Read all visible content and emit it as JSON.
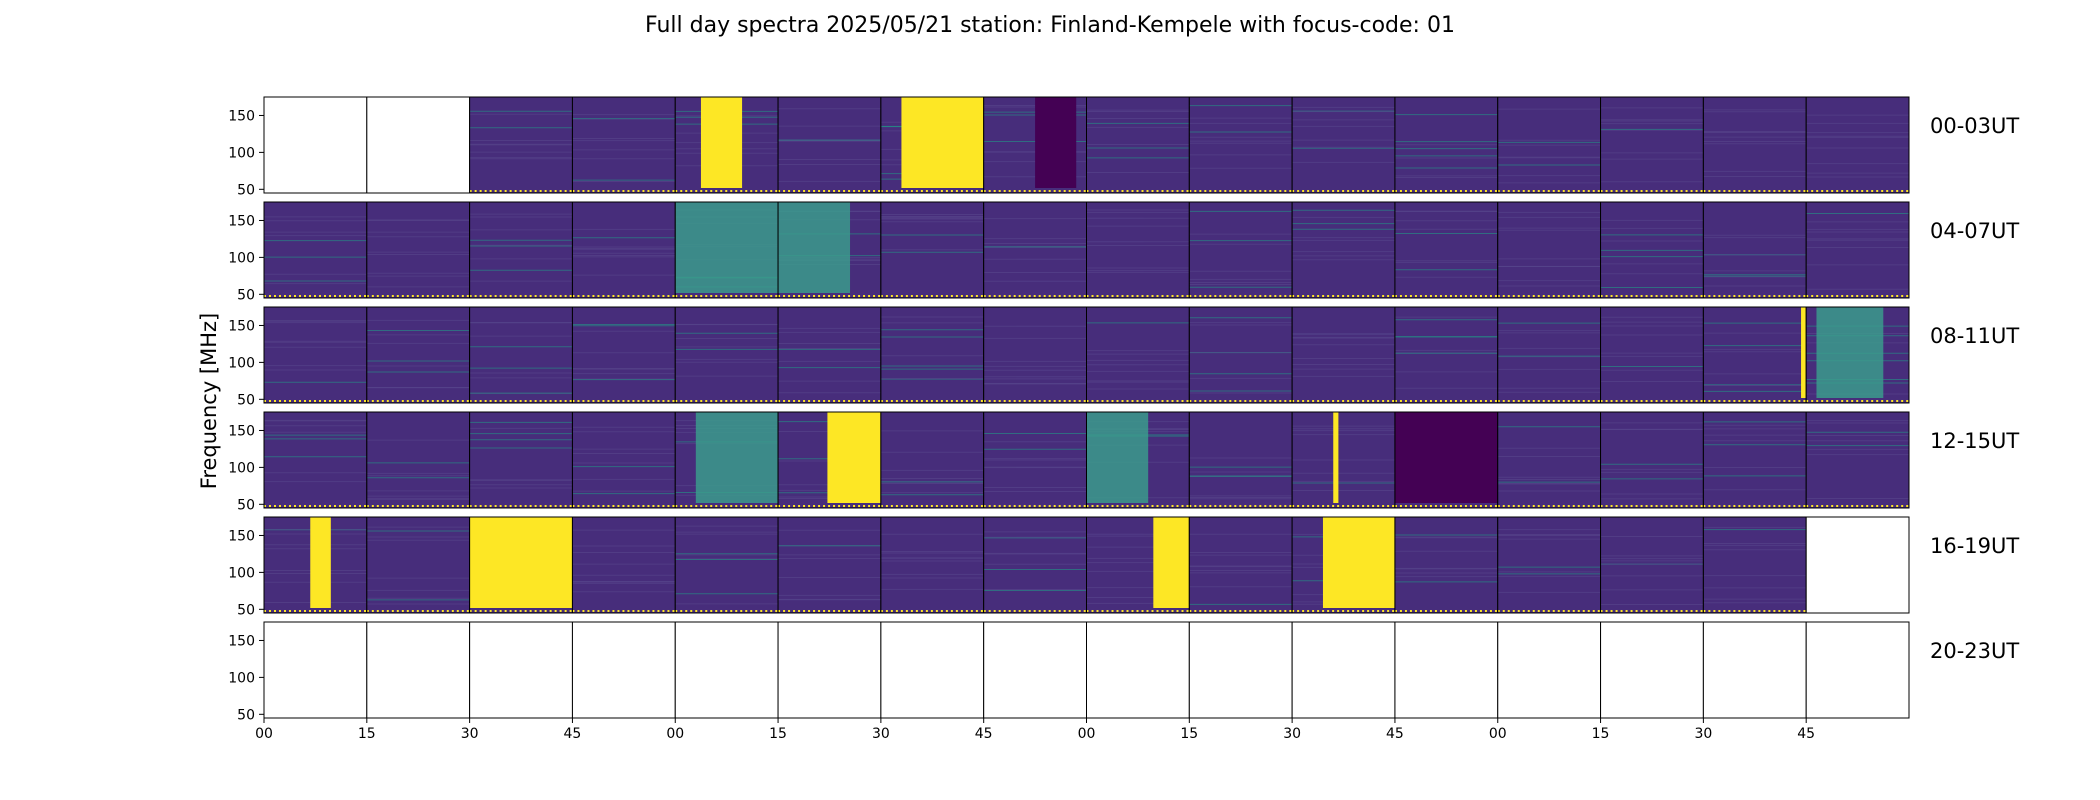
{
  "title": "Full day spectra 2025/05/21 station: Finland-Kempele with focus-code: 01",
  "ylabel": "Frequency [MHz]",
  "colors": {
    "background": "#440154",
    "base": "#472d7b",
    "hot": "#fde725",
    "warm": "#3b9b8c",
    "line": "#1fa187",
    "frame": "#000000"
  },
  "chart_data": {
    "type": "heatmap",
    "title": "Full day spectra 2025/05/21 station: Finland-Kempele with focus-code: 01",
    "ylabel": "Frequency [MHz]",
    "ylim": [
      45,
      175
    ],
    "yticks": [
      50,
      100,
      150
    ],
    "xticks": [
      "00",
      "15",
      "30",
      "45",
      "00",
      "15",
      "30",
      "45",
      "00",
      "15",
      "30",
      "45",
      "00",
      "15",
      "30",
      "45"
    ],
    "panels_per_row": 16,
    "panel_duration_min": 15,
    "rows": [
      {
        "label": "00-03UT",
        "panels": [
          {
            "status": "empty"
          },
          {
            "status": "empty"
          },
          {
            "status": "data"
          },
          {
            "status": "data"
          },
          {
            "status": "data",
            "burst": [
              0.25,
              0.65,
              "hot"
            ]
          },
          {
            "status": "data"
          },
          {
            "status": "data",
            "burst": [
              0.2,
              1.0,
              "hot"
            ]
          },
          {
            "status": "data",
            "burst": [
              0.5,
              0.9,
              "dark"
            ]
          },
          {
            "status": "data"
          },
          {
            "status": "data"
          },
          {
            "status": "data"
          },
          {
            "status": "data"
          },
          {
            "status": "data"
          },
          {
            "status": "data"
          },
          {
            "status": "data"
          },
          {
            "status": "data"
          }
        ]
      },
      {
        "label": "04-07UT",
        "panels": [
          {
            "status": "data"
          },
          {
            "status": "data"
          },
          {
            "status": "data"
          },
          {
            "status": "data"
          },
          {
            "status": "data",
            "burst": [
              0.0,
              1.0,
              "warm"
            ]
          },
          {
            "status": "data",
            "burst": [
              0.0,
              0.7,
              "warm"
            ]
          },
          {
            "status": "data"
          },
          {
            "status": "data"
          },
          {
            "status": "data"
          },
          {
            "status": "data"
          },
          {
            "status": "data"
          },
          {
            "status": "data"
          },
          {
            "status": "data"
          },
          {
            "status": "data"
          },
          {
            "status": "data"
          },
          {
            "status": "data"
          }
        ]
      },
      {
        "label": "08-11UT",
        "panels": [
          {
            "status": "data"
          },
          {
            "status": "data"
          },
          {
            "status": "data"
          },
          {
            "status": "data"
          },
          {
            "status": "data"
          },
          {
            "status": "data"
          },
          {
            "status": "data"
          },
          {
            "status": "data"
          },
          {
            "status": "data"
          },
          {
            "status": "data"
          },
          {
            "status": "data"
          },
          {
            "status": "data"
          },
          {
            "status": "data"
          },
          {
            "status": "data"
          },
          {
            "status": "data",
            "burst": [
              0.95,
              1.0,
              "hot"
            ]
          },
          {
            "status": "data",
            "burst": [
              0.1,
              0.75,
              "warm"
            ]
          }
        ]
      },
      {
        "label": "12-15UT",
        "panels": [
          {
            "status": "data"
          },
          {
            "status": "data"
          },
          {
            "status": "data"
          },
          {
            "status": "data"
          },
          {
            "status": "data",
            "burst": [
              0.2,
              1.0,
              "warm"
            ]
          },
          {
            "status": "data",
            "burst": [
              0.48,
              1.0,
              "hot"
            ]
          },
          {
            "status": "data"
          },
          {
            "status": "data"
          },
          {
            "status": "data",
            "burst": [
              0.0,
              0.6,
              "warm"
            ]
          },
          {
            "status": "data"
          },
          {
            "status": "data",
            "burst": [
              0.4,
              0.45,
              "hot"
            ]
          },
          {
            "status": "data",
            "burst": [
              0.0,
              1.0,
              "dark"
            ]
          },
          {
            "status": "data"
          },
          {
            "status": "data"
          },
          {
            "status": "data"
          },
          {
            "status": "data"
          }
        ]
      },
      {
        "label": "16-19UT",
        "panels": [
          {
            "status": "data",
            "burst": [
              0.45,
              0.65,
              "hot"
            ]
          },
          {
            "status": "data"
          },
          {
            "status": "data",
            "burst": [
              0.0,
              1.0,
              "hot"
            ]
          },
          {
            "status": "data"
          },
          {
            "status": "data"
          },
          {
            "status": "data"
          },
          {
            "status": "data"
          },
          {
            "status": "data"
          },
          {
            "status": "data",
            "burst": [
              0.65,
              1.0,
              "hot"
            ]
          },
          {
            "status": "data"
          },
          {
            "status": "data",
            "burst": [
              0.3,
              1.0,
              "hot"
            ]
          },
          {
            "status": "data"
          },
          {
            "status": "data"
          },
          {
            "status": "data"
          },
          {
            "status": "data"
          },
          {
            "status": "empty"
          }
        ]
      },
      {
        "label": "20-23UT",
        "panels": [
          {
            "status": "empty"
          },
          {
            "status": "empty"
          },
          {
            "status": "empty"
          },
          {
            "status": "empty"
          },
          {
            "status": "empty"
          },
          {
            "status": "empty"
          },
          {
            "status": "empty"
          },
          {
            "status": "empty"
          },
          {
            "status": "empty"
          },
          {
            "status": "empty"
          },
          {
            "status": "empty"
          },
          {
            "status": "empty"
          },
          {
            "status": "empty"
          },
          {
            "status": "empty"
          },
          {
            "status": "empty"
          },
          {
            "status": "empty"
          }
        ]
      }
    ]
  }
}
